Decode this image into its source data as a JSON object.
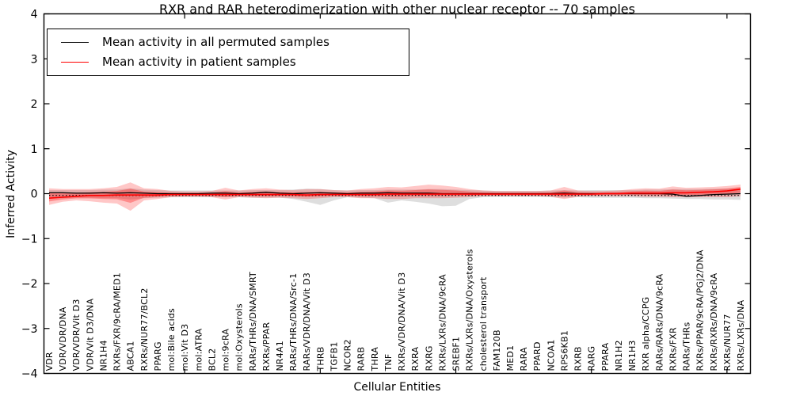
{
  "title": "RXR and RAR heterodimerization with other nuclear receptor -- 70 samples",
  "legend": {
    "items": [
      {
        "label": "Mean activity in all permuted samples",
        "color": "#000000"
      },
      {
        "label": "Mean activity in patient samples",
        "color": "#ff0000"
      }
    ]
  },
  "chart_data": {
    "type": "line",
    "title": "RXR and RAR heterodimerization with other nuclear receptor -- 70 samples",
    "xlabel": "Cellular Entities",
    "ylabel": "Inferred Activity",
    "ylim": [
      -4,
      4
    ],
    "ytick_values": [
      4,
      3,
      2,
      1,
      0,
      -1,
      -2,
      -3,
      -4
    ],
    "ytick_labels": [
      "4",
      "3",
      "2",
      "1",
      "0",
      "−1",
      "−2",
      "−3",
      "−4"
    ],
    "x_major_tick_indices": [
      10,
      20,
      30,
      40,
      50
    ],
    "grid": false,
    "legend_position": "upper left",
    "reference_line": {
      "y": -0.04,
      "style": "dotted",
      "color": "#000000"
    },
    "colors": {
      "permuted": "#000000",
      "patient": "#ff0000",
      "permuted_band": "rgba(0,0,0,0.13)",
      "patient_band": "rgba(255,0,0,0.22)",
      "patient_inner_band": "rgba(255,0,0,0.30)"
    },
    "categories": [
      "VDR",
      "VDR/VDR/DNA",
      "VDR/VDR/Vit D3",
      "VDR/Vit D3/DNA",
      "NR1H4",
      "RXRs/FXR/9cRA/MED1",
      "ABCA1",
      "RXRs/NUR77/BCL2",
      "PPARG",
      "mol:Bile acids",
      "mol:Vit D3",
      "mol:ATRA",
      "BCL2",
      "mol:9cRA",
      "mol:Oxysterols",
      "RARs/THRs/DNA/SMRT",
      "RXRs/PPAR",
      "NR4A1",
      "RARs/THRs/DNA/Src-1",
      "RARs/VDR/DNA/Vit D3",
      "THRB",
      "TGFB1",
      "NCOR2",
      "RARB",
      "THRA",
      "TNF",
      "RXRs/VDR/DNA/Vit D3",
      "RXRA",
      "RXRG",
      "RXRs/LXRs/DNA/9cRA",
      "SREBF1",
      "RXRs/LXRs/DNA/Oxysterols",
      "cholesterol transport",
      "FAM120B",
      "MED1",
      "RARA",
      "PPARD",
      "NCOA1",
      "RPS6KB1",
      "RXRB",
      "RARG",
      "PPARA",
      "NR1H2",
      "NR1H3",
      "RXR alpha/CCPG",
      "RARs/RARs/DNA/9cRA",
      "RXRs/FXR",
      "RARs/THRs",
      "RXRs/PPAR/9cRA/PGJ2/DNA",
      "RXRs/RXRs/DNA/9cRA",
      "RXRs/NUR77",
      "RXRs/LXRs/DNA"
    ],
    "series": [
      {
        "name": "Mean activity in all permuted samples",
        "color": "#000000",
        "values": [
          0.02,
          0.02,
          0.01,
          0.01,
          0.02,
          0.01,
          0.02,
          0.01,
          0.0,
          0.0,
          0.0,
          0.0,
          0.01,
          0.01,
          0.0,
          0.01,
          0.03,
          0.01,
          0.0,
          0.01,
          0.02,
          0.01,
          0.0,
          0.01,
          0.01,
          0.02,
          0.01,
          0.01,
          0.01,
          0.0,
          0.0,
          0.0,
          0.0,
          0.0,
          0.0,
          0.0,
          0.0,
          0.0,
          0.01,
          0.0,
          0.0,
          0.0,
          0.0,
          0.0,
          0.0,
          0.0,
          -0.01,
          -0.06,
          -0.04,
          -0.02,
          -0.01,
          0.0
        ]
      },
      {
        "name": "Mean activity in patient samples",
        "color": "#ff0000",
        "values": [
          -0.1,
          -0.08,
          -0.06,
          -0.04,
          -0.04,
          -0.03,
          -0.03,
          -0.03,
          -0.03,
          -0.02,
          -0.02,
          -0.02,
          -0.02,
          -0.02,
          -0.02,
          -0.02,
          -0.02,
          -0.02,
          -0.02,
          -0.03,
          -0.02,
          -0.02,
          -0.02,
          -0.02,
          -0.02,
          -0.01,
          -0.01,
          -0.01,
          -0.01,
          -0.01,
          -0.01,
          -0.01,
          -0.01,
          -0.01,
          -0.01,
          -0.01,
          -0.01,
          -0.01,
          -0.01,
          -0.01,
          -0.01,
          0.0,
          0.0,
          0.01,
          0.01,
          0.01,
          0.02,
          0.02,
          0.03,
          0.04,
          0.06,
          0.1
        ]
      }
    ],
    "bands": [
      {
        "name": "permuted-range",
        "upper": [
          0.08,
          0.08,
          0.08,
          0.08,
          0.09,
          0.09,
          0.12,
          0.09,
          0.08,
          0.07,
          0.07,
          0.07,
          0.07,
          0.07,
          0.07,
          0.08,
          0.08,
          0.08,
          0.09,
          0.11,
          0.1,
          0.08,
          0.07,
          0.08,
          0.08,
          0.09,
          0.09,
          0.09,
          0.1,
          0.1,
          0.09,
          0.08,
          0.07,
          0.06,
          0.06,
          0.06,
          0.06,
          0.07,
          0.08,
          0.07,
          0.08,
          0.08,
          0.08,
          0.08,
          0.09,
          0.09,
          0.1,
          0.1,
          0.1,
          0.11,
          0.11,
          0.12
        ],
        "lower": [
          -0.1,
          -0.1,
          -0.09,
          -0.09,
          -0.1,
          -0.1,
          -0.13,
          -0.1,
          -0.09,
          -0.08,
          -0.08,
          -0.08,
          -0.08,
          -0.08,
          -0.08,
          -0.09,
          -0.09,
          -0.09,
          -0.12,
          -0.18,
          -0.25,
          -0.15,
          -0.08,
          -0.09,
          -0.1,
          -0.2,
          -0.15,
          -0.18,
          -0.22,
          -0.28,
          -0.27,
          -0.12,
          -0.08,
          -0.07,
          -0.07,
          -0.07,
          -0.07,
          -0.08,
          -0.09,
          -0.08,
          -0.09,
          -0.09,
          -0.09,
          -0.09,
          -0.1,
          -0.1,
          -0.11,
          -0.12,
          -0.12,
          -0.13,
          -0.13,
          -0.14
        ]
      },
      {
        "name": "patient-range",
        "upper": [
          0.12,
          0.1,
          0.1,
          0.1,
          0.12,
          0.15,
          0.25,
          0.12,
          0.1,
          0.06,
          0.05,
          0.05,
          0.06,
          0.13,
          0.07,
          0.1,
          0.12,
          0.09,
          0.08,
          0.1,
          0.1,
          0.08,
          0.07,
          0.1,
          0.12,
          0.15,
          0.14,
          0.17,
          0.2,
          0.18,
          0.15,
          0.1,
          0.07,
          0.06,
          0.06,
          0.06,
          0.06,
          0.07,
          0.15,
          0.07,
          0.06,
          0.06,
          0.07,
          0.1,
          0.12,
          0.11,
          0.16,
          0.13,
          0.14,
          0.15,
          0.17,
          0.2
        ],
        "lower": [
          -0.25,
          -0.18,
          -0.15,
          -0.17,
          -0.2,
          -0.22,
          -0.38,
          -0.15,
          -0.12,
          -0.08,
          -0.07,
          -0.07,
          -0.08,
          -0.13,
          -0.08,
          -0.09,
          -0.1,
          -0.09,
          -0.1,
          -0.12,
          -0.1,
          -0.08,
          -0.08,
          -0.1,
          -0.1,
          -0.12,
          -0.12,
          -0.1,
          -0.1,
          -0.1,
          -0.09,
          -0.08,
          -0.06,
          -0.06,
          -0.06,
          -0.06,
          -0.06,
          -0.07,
          -0.12,
          -0.07,
          -0.06,
          -0.06,
          -0.06,
          -0.06,
          -0.07,
          -0.07,
          -0.08,
          -0.08,
          -0.08,
          -0.08,
          -0.08,
          -0.06
        ]
      }
    ]
  }
}
